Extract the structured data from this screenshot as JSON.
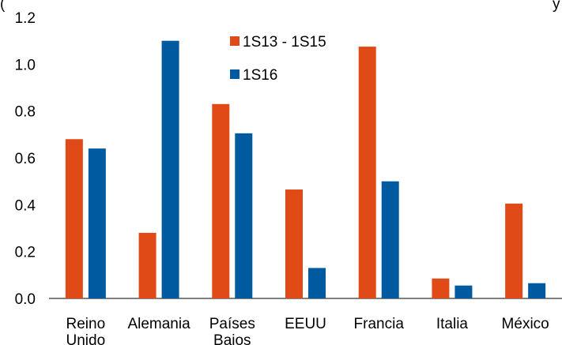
{
  "chart_data": {
    "type": "bar",
    "categories": [
      "Reino Unido",
      "Alemania",
      "Países Bajos",
      "EEUU",
      "Francia",
      "Italia",
      "México"
    ],
    "category_lines": [
      [
        "Reino",
        "Unido"
      ],
      [
        "Alemania"
      ],
      [
        "Países",
        "Bajos"
      ],
      [
        "EEUU"
      ],
      [
        "Francia"
      ],
      [
        "Italia"
      ],
      [
        "México"
      ]
    ],
    "series": [
      {
        "name": "1S13 - 1S15",
        "color": "#E04A17",
        "values": [
          0.68,
          0.28,
          0.83,
          0.465,
          1.075,
          0.085,
          0.405
        ]
      },
      {
        "name": "1S16",
        "color": "#005AA0",
        "values": [
          0.64,
          1.1,
          0.705,
          0.13,
          0.5,
          0.055,
          0.065
        ]
      }
    ],
    "ylim": [
      0,
      1.2
    ],
    "yticks": [
      "0.0",
      "0.2",
      "0.4",
      "0.6",
      "0.8",
      "1.0",
      "1.2"
    ],
    "grid": false,
    "legend_position": "top-center",
    "title": "(",
    "subtitle_fragment": "y"
  }
}
